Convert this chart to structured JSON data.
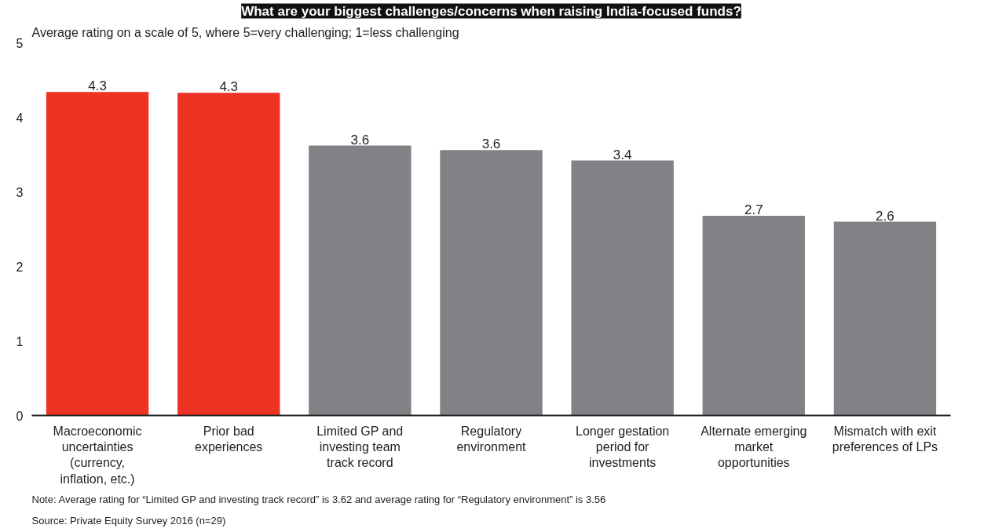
{
  "chart_data": {
    "type": "bar",
    "title": "What are your biggest challenges/concerns when raising India-focused funds?",
    "subtitle": "Average rating on a scale of 5, where 5=very challenging; 1=less challenging",
    "categories": [
      "Macroeconomic uncertainties (currency, inflation, etc.)",
      "Prior bad experiences",
      "Limited GP and investing team track record",
      "Regulatory environment",
      "Longer gestation period for investments",
      "Alternate emerging market opportunities",
      "Mismatch with exit preferences of LPs"
    ],
    "values": [
      4.34,
      4.33,
      3.62,
      3.56,
      3.42,
      2.68,
      2.6
    ],
    "value_labels": [
      "4.3",
      "4.3",
      "3.6",
      "3.6",
      "3.4",
      "2.7",
      "2.6"
    ],
    "colors": [
      "#ee3224",
      "#ee3224",
      "#808285",
      "#808285",
      "#808285",
      "#808285",
      "#808285"
    ],
    "ylim": [
      0,
      5
    ],
    "yticks": [
      0,
      1,
      2,
      3,
      4,
      5
    ],
    "grid": false,
    "annotations": [
      "Note: Average rating for “Limited GP and investing track record” is 3.62 and average rating for “Regulatory environment” is 3.56",
      "Source: Private Equity Survey 2016 (n=29)"
    ]
  }
}
